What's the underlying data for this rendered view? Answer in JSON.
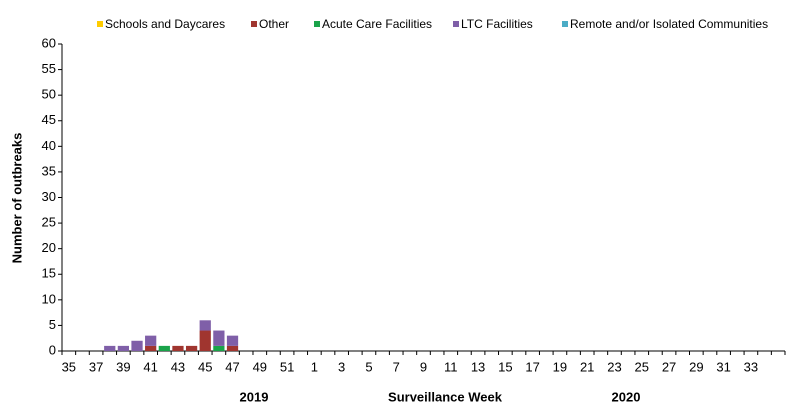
{
  "chart_data": {
    "type": "stacked_bar",
    "y_label": "Number of outbreaks",
    "x_label": "Surveillance Week",
    "year_labels": [
      "2019",
      "2020"
    ],
    "categories": [
      "35",
      null,
      "37",
      null,
      "39",
      null,
      "41",
      null,
      "43",
      null,
      "45",
      null,
      "47",
      null,
      "49",
      null,
      "51",
      null,
      "1",
      null,
      "3",
      null,
      "5",
      null,
      "7",
      null,
      "9",
      null,
      "11",
      null,
      "13",
      null,
      "15",
      null,
      "17",
      null,
      "19",
      null,
      "21",
      null,
      "23",
      null,
      "25",
      null,
      "27",
      null,
      "29",
      null,
      "31",
      null,
      "33",
      null,
      null
    ],
    "series": [
      {
        "name": "Schools and Daycares",
        "color": "#ffcc00",
        "values": [
          0,
          0,
          0,
          0,
          0,
          0,
          0,
          0,
          0,
          0,
          0,
          0,
          0,
          0,
          0,
          0,
          0,
          0,
          0,
          0,
          0,
          0,
          0,
          0,
          0,
          0,
          0,
          0,
          0,
          0,
          0,
          0,
          0,
          0,
          0,
          0,
          0,
          0,
          0,
          0,
          0,
          0,
          0,
          0,
          0,
          0,
          0,
          0,
          0,
          0,
          0,
          0,
          0
        ]
      },
      {
        "name": "Other",
        "color": "#a0352f",
        "values": [
          0,
          0,
          0,
          0,
          0,
          0,
          1,
          0,
          1,
          1,
          4,
          0,
          1,
          0,
          0,
          0,
          0,
          0,
          0,
          0,
          0,
          0,
          0,
          0,
          0,
          0,
          0,
          0,
          0,
          0,
          0,
          0,
          0,
          0,
          0,
          0,
          0,
          0,
          0,
          0,
          0,
          0,
          0,
          0,
          0,
          0,
          0,
          0,
          0,
          0,
          0,
          0,
          0
        ]
      },
      {
        "name": "Acute Care Facilities",
        "color": "#1aa34a",
        "values": [
          0,
          0,
          0,
          0,
          0,
          0,
          0,
          1,
          0,
          0,
          0,
          1,
          0,
          0,
          0,
          0,
          0,
          0,
          0,
          0,
          0,
          0,
          0,
          0,
          0,
          0,
          0,
          0,
          0,
          0,
          0,
          0,
          0,
          0,
          0,
          0,
          0,
          0,
          0,
          0,
          0,
          0,
          0,
          0,
          0,
          0,
          0,
          0,
          0,
          0,
          0,
          0,
          0
        ]
      },
      {
        "name": "LTC Facilities",
        "color": "#7f5fa8",
        "values": [
          0,
          0,
          0,
          1,
          1,
          2,
          2,
          0,
          0,
          0,
          2,
          3,
          2,
          0,
          0,
          0,
          0,
          0,
          0,
          0,
          0,
          0,
          0,
          0,
          0,
          0,
          0,
          0,
          0,
          0,
          0,
          0,
          0,
          0,
          0,
          0,
          0,
          0,
          0,
          0,
          0,
          0,
          0,
          0,
          0,
          0,
          0,
          0,
          0,
          0,
          0,
          0,
          0
        ]
      },
      {
        "name": "Remote and/or Isolated Communities",
        "color": "#4bacc6",
        "values": [
          0,
          0,
          0,
          0,
          0,
          0,
          0,
          0,
          0,
          0,
          0,
          0,
          0,
          0,
          0,
          0,
          0,
          0,
          0,
          0,
          0,
          0,
          0,
          0,
          0,
          0,
          0,
          0,
          0,
          0,
          0,
          0,
          0,
          0,
          0,
          0,
          0,
          0,
          0,
          0,
          0,
          0,
          0,
          0,
          0,
          0,
          0,
          0,
          0,
          0,
          0,
          0,
          0
        ]
      }
    ],
    "ylim": [
      0,
      60
    ],
    "yticks": [
      0,
      5,
      10,
      15,
      20,
      25,
      30,
      35,
      40,
      45,
      50,
      55,
      60
    ]
  }
}
